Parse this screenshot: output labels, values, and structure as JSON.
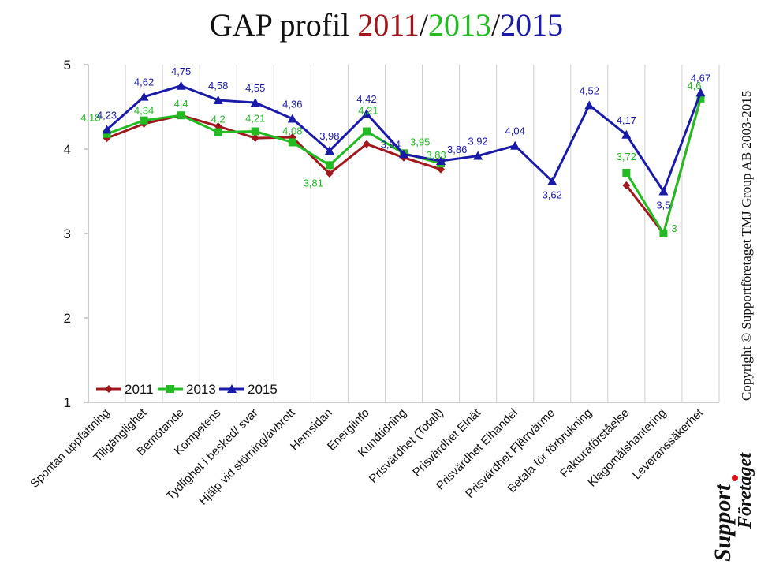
{
  "title": {
    "prefix": "GAP profil ",
    "y2011": "2011",
    "sep1": "/",
    "y2013": "2013",
    "sep2": "/",
    "y2015": "2015"
  },
  "copyright": "Copyright © Supportföretaget TMJ Group AB 2003-2015",
  "logo": {
    "word1": "Support",
    "word2": "Företaget"
  },
  "colors": {
    "s2011": "#a0171e",
    "s2013": "#22bb22",
    "s2015": "#1a1aa8"
  },
  "chart_data": {
    "type": "line",
    "title": "GAP profil 2011/2013/2015",
    "categories": [
      "Spontan uppfattning",
      "Tillgänglighet",
      "Bemötande",
      "Kompetens",
      "Tydlighet i besked/ svar",
      "Hjälp vid störning/avbrott",
      "Hemsidan",
      "Energiinfo",
      "Kundtidning",
      "Prisvärdhet (Totalt)",
      "Prisvärdhet Elnät",
      "Prisvärdhet Elhandel",
      "Prisvärdhet Fjärrvärme",
      "Betala för förbrukning",
      "Fakturaförståelse",
      "Klagomålshantering",
      "Leveranssäkerhet"
    ],
    "ylim": [
      1,
      5
    ],
    "yticks": [
      1,
      2,
      3,
      4,
      5
    ],
    "grid": "vertical",
    "legend": "bottom-left",
    "series": [
      {
        "name": "2011",
        "values": [
          4.13,
          4.3,
          4.4,
          4.27,
          4.13,
          4.14,
          3.71,
          4.06,
          3.9,
          3.76,
          null,
          null,
          null,
          null,
          3.57,
          3.0,
          4.6
        ],
        "labels": []
      },
      {
        "name": "2013",
        "values": [
          4.18,
          4.34,
          4.4,
          4.2,
          4.21,
          4.08,
          3.81,
          4.21,
          3.95,
          3.83,
          null,
          null,
          null,
          null,
          3.72,
          3.0,
          4.6
        ],
        "labels": [
          "4,18",
          "4,34",
          "4,4",
          "4,2",
          "4,21",
          "4,08",
          "3,81",
          "4,21",
          "3,95",
          "3,83",
          "",
          "",
          "",
          "",
          "3,72",
          "3",
          "4,6"
        ]
      },
      {
        "name": "2015",
        "values": [
          4.23,
          4.62,
          4.75,
          4.58,
          4.55,
          4.36,
          3.98,
          4.42,
          3.94,
          3.86,
          3.92,
          4.04,
          3.62,
          4.52,
          4.17,
          3.5,
          4.67
        ],
        "labels": [
          "4,23",
          "4,62",
          "4,75",
          "4,58",
          "4,55",
          "4,36",
          "3,98",
          "4,42",
          "3,94",
          "3,86",
          "3,92",
          "4,04",
          "3,62",
          "4,52",
          "4,17",
          "3,5",
          "4,67"
        ]
      }
    ]
  }
}
